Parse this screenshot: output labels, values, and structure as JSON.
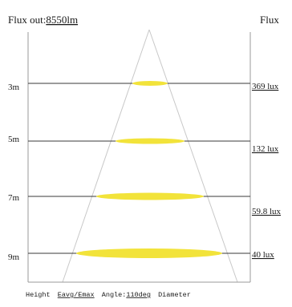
{
  "header": {
    "flux_out_prefix": "Flux out:",
    "flux_out_value": "8550lm",
    "flux_right_label": "Flux"
  },
  "rows": [
    {
      "height": "3m",
      "lux": "369 lux"
    },
    {
      "height": "5m",
      "lux": "132 lux"
    },
    {
      "height": "7m",
      "lux": "59.8 lux"
    },
    {
      "height": "9m",
      "lux": "40 lux"
    }
  ],
  "footer": {
    "height_label": "Height",
    "eavg_label": "Eavg/Emax",
    "angle_prefix": "Angle:",
    "angle_value": "110deg",
    "diameter_label": "Diameter"
  },
  "colors": {
    "line": "#3a3a3a",
    "cone": "#c8c8c8",
    "spot": "#f2e33a",
    "text": "#1a1a1a",
    "frame": "#9a9a9a"
  }
}
